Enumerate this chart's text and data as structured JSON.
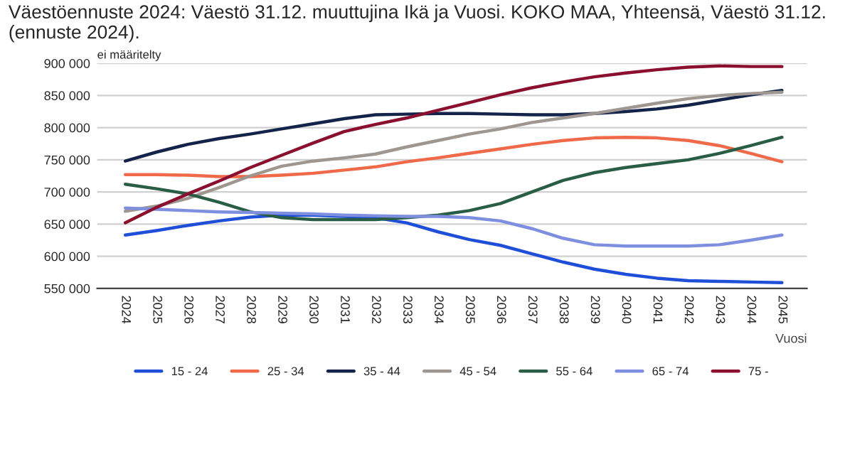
{
  "chart_data": {
    "type": "line",
    "title": "Väestöennuste 2024: Väestö 31.12. muuttujina Ikä ja Vuosi. KOKO MAA, Yhteensä, Väestö 31.12. (ennuste 2024).",
    "ylabel": "ei määritelty",
    "xlabel": "Vuosi",
    "categories": [
      "2024",
      "2025",
      "2026",
      "2027",
      "2028",
      "2029",
      "2030",
      "2031",
      "2032",
      "2033",
      "2034",
      "2035",
      "2036",
      "2037",
      "2038",
      "2039",
      "2040",
      "2041",
      "2042",
      "2043",
      "2044",
      "2045"
    ],
    "series": [
      {
        "name": "15 - 24",
        "color": "#1f4fd8",
        "values": [
          633000,
          640000,
          648000,
          655000,
          661000,
          664000,
          664000,
          662000,
          660000,
          652000,
          638000,
          626000,
          617000,
          604000,
          591000,
          580000,
          572000,
          566000,
          562000,
          561000,
          560000,
          559000
        ]
      },
      {
        "name": "25 - 34",
        "color": "#f06a4a",
        "values": [
          727000,
          727000,
          726000,
          724000,
          724000,
          726000,
          729000,
          734000,
          739000,
          747000,
          753000,
          760000,
          767000,
          774000,
          780000,
          784000,
          785000,
          784000,
          780000,
          772000,
          760000,
          747000
        ]
      },
      {
        "name": "35 - 44",
        "color": "#14234a",
        "values": [
          748000,
          762000,
          774000,
          783000,
          790000,
          798000,
          806000,
          814000,
          820000,
          821000,
          822000,
          822000,
          821000,
          820000,
          820000,
          822000,
          825000,
          829000,
          835000,
          843000,
          851000,
          858000
        ]
      },
      {
        "name": "45 - 54",
        "color": "#9e9690",
        "values": [
          670000,
          678000,
          690000,
          707000,
          725000,
          740000,
          748000,
          753000,
          759000,
          770000,
          780000,
          790000,
          798000,
          808000,
          815000,
          822000,
          830000,
          838000,
          845000,
          850000,
          853000,
          855000
        ]
      },
      {
        "name": "55 - 64",
        "color": "#2a5d45",
        "values": [
          712000,
          705000,
          697000,
          684000,
          669000,
          660000,
          657000,
          657000,
          657000,
          660000,
          664000,
          671000,
          682000,
          700000,
          718000,
          730000,
          738000,
          744000,
          750000,
          760000,
          772000,
          785000
        ]
      },
      {
        "name": "65 - 74",
        "color": "#7f8fe0",
        "values": [
          675000,
          673000,
          671000,
          669000,
          668000,
          667000,
          666000,
          664000,
          663000,
          662000,
          662000,
          660000,
          655000,
          643000,
          628000,
          618000,
          616000,
          616000,
          616000,
          618000,
          625000,
          633000
        ]
      },
      {
        "name": "75 -",
        "color": "#8b1030",
        "values": [
          652000,
          676000,
          697000,
          717000,
          738000,
          757000,
          776000,
          794000,
          805000,
          815000,
          827000,
          839000,
          851000,
          862000,
          871000,
          879000,
          885000,
          890000,
          894000,
          896000,
          895000,
          895000
        ]
      }
    ],
    "ylim": [
      550000,
      900000
    ],
    "yticks": [
      {
        "value": 550000,
        "label": "550 000"
      },
      {
        "value": 600000,
        "label": "600 000"
      },
      {
        "value": 650000,
        "label": "650 000"
      },
      {
        "value": 700000,
        "label": "700 000"
      },
      {
        "value": 750000,
        "label": "750 000"
      },
      {
        "value": 800000,
        "label": "800 000"
      },
      {
        "value": 850000,
        "label": "850 000"
      },
      {
        "value": 900000,
        "label": "900 000"
      }
    ],
    "grid": "y",
    "legend": "bottom",
    "marker": "none",
    "line_style": "solid"
  }
}
